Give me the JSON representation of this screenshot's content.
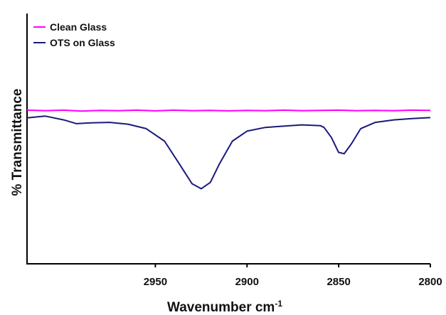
{
  "chart_data": {
    "type": "line",
    "title": "",
    "xlabel": "Wavenumber cm",
    "xlabel_superscript": "-1",
    "ylabel": "% Transmittance",
    "xlim": [
      3020,
      2800
    ],
    "ylim": [
      0,
      1
    ],
    "x_reversed": true,
    "x_ticks": [
      2950,
      2900,
      2850,
      2800
    ],
    "x_tick_labels": [
      "2950",
      "2900",
      "2850",
      "2800"
    ],
    "y_ticks_shown": false,
    "grid": false,
    "legend_position": "top-left",
    "series": [
      {
        "name": "Clean Glass",
        "color": "#ff00ff",
        "points": [
          [
            3020,
            0.614
          ],
          [
            3010,
            0.612
          ],
          [
            3000,
            0.614
          ],
          [
            2990,
            0.61
          ],
          [
            2980,
            0.613
          ],
          [
            2970,
            0.612
          ],
          [
            2960,
            0.614
          ],
          [
            2950,
            0.611
          ],
          [
            2940,
            0.614
          ],
          [
            2930,
            0.612
          ],
          [
            2920,
            0.613
          ],
          [
            2910,
            0.611
          ],
          [
            2900,
            0.613
          ],
          [
            2890,
            0.612
          ],
          [
            2880,
            0.614
          ],
          [
            2870,
            0.612
          ],
          [
            2860,
            0.613
          ],
          [
            2850,
            0.614
          ],
          [
            2840,
            0.612
          ],
          [
            2830,
            0.613
          ],
          [
            2820,
            0.612
          ],
          [
            2810,
            0.614
          ],
          [
            2800,
            0.613
          ]
        ]
      },
      {
        "name": "OTS on Glass",
        "color": "#1a1a7a",
        "points": [
          [
            3020,
            0.583
          ],
          [
            3010,
            0.59
          ],
          [
            3000,
            0.575
          ],
          [
            2993,
            0.56
          ],
          [
            2985,
            0.563
          ],
          [
            2975,
            0.565
          ],
          [
            2965,
            0.558
          ],
          [
            2955,
            0.54
          ],
          [
            2945,
            0.49
          ],
          [
            2937,
            0.4
          ],
          [
            2930,
            0.32
          ],
          [
            2925,
            0.3
          ],
          [
            2920,
            0.325
          ],
          [
            2915,
            0.4
          ],
          [
            2908,
            0.49
          ],
          [
            2900,
            0.53
          ],
          [
            2890,
            0.545
          ],
          [
            2880,
            0.55
          ],
          [
            2870,
            0.555
          ],
          [
            2860,
            0.552
          ],
          [
            2858,
            0.545
          ],
          [
            2854,
            0.505
          ],
          [
            2850,
            0.445
          ],
          [
            2847,
            0.44
          ],
          [
            2843,
            0.48
          ],
          [
            2838,
            0.54
          ],
          [
            2830,
            0.565
          ],
          [
            2820,
            0.575
          ],
          [
            2810,
            0.58
          ],
          [
            2800,
            0.584
          ]
        ]
      }
    ]
  }
}
